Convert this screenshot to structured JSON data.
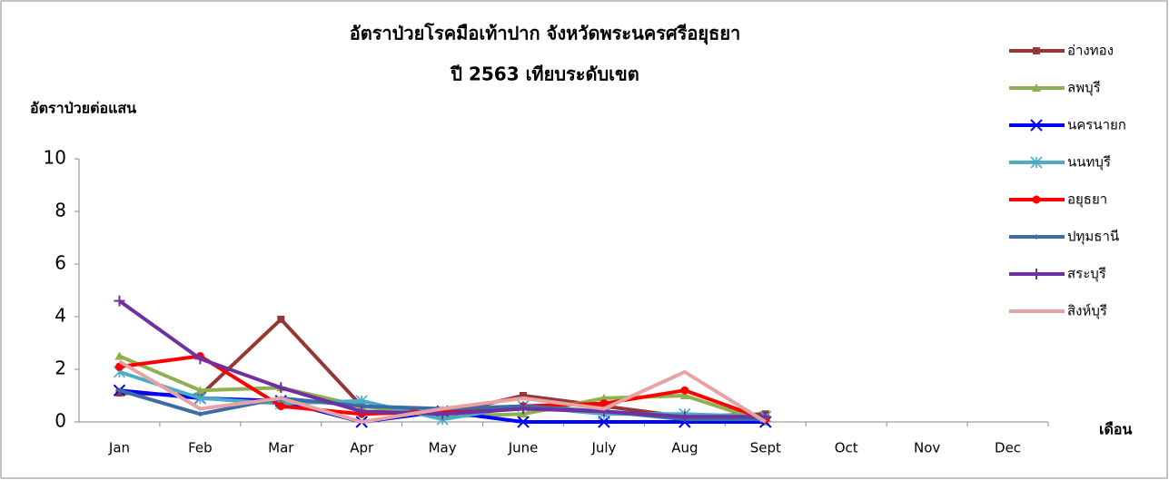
{
  "chart_data": {
    "type": "line",
    "title": "อัตราป่วยโรคมือเท้าปาก จังหวัดพระนครศรีอยุธยา",
    "subtitle": "ปี 2563 เทียบระดับเขต",
    "y_label": "อัตราป่วยต่อแสน",
    "x_label": "เดือน",
    "categories": [
      "Jan",
      "Feb",
      "Mar",
      "Apr",
      "May",
      "June",
      "July",
      "Aug",
      "Sept",
      "Oct",
      "Nov",
      "Dec"
    ],
    "ylim": [
      0,
      10
    ],
    "yticks": [
      0,
      2,
      4,
      6,
      8,
      10
    ],
    "grid": false,
    "legend": "right",
    "series": [
      {
        "name": "อ่างทอง",
        "color": "#953735",
        "marker": "square",
        "values": [
          1.1,
          1.0,
          3.9,
          0.6,
          0.3,
          1.0,
          0.6,
          0.2,
          0.3,
          null,
          null,
          null
        ]
      },
      {
        "name": "ลพบุรี",
        "color": "#8fb04f",
        "marker": "triangle",
        "values": [
          2.5,
          1.2,
          1.3,
          0.6,
          0.2,
          0.3,
          0.9,
          1.0,
          0.0,
          null,
          null,
          null
        ]
      },
      {
        "name": "นครนายก",
        "color": "#0000ff",
        "marker": "x",
        "values": [
          1.2,
          0.9,
          0.8,
          0.0,
          0.4,
          0.0,
          0.0,
          0.0,
          0.0,
          null,
          null,
          null
        ]
      },
      {
        "name": "นนทบุรี",
        "color": "#4bacc6",
        "marker": "asterisk",
        "values": [
          1.9,
          0.9,
          0.7,
          0.8,
          0.1,
          0.6,
          0.3,
          0.3,
          0.2,
          null,
          null,
          null
        ]
      },
      {
        "name": "อยุธยา",
        "color": "#ff0000",
        "marker": "circle",
        "values": [
          2.1,
          2.5,
          0.6,
          0.3,
          0.4,
          0.6,
          0.7,
          1.2,
          0.1,
          null,
          null,
          null
        ]
      },
      {
        "name": "ปทุมธานี",
        "color": "#3a6ca8",
        "marker": "diamond",
        "values": [
          1.2,
          0.3,
          0.9,
          0.6,
          0.5,
          0.6,
          0.4,
          0.1,
          0.1,
          null,
          null,
          null
        ]
      },
      {
        "name": "สระบุรี",
        "color": "#7030a0",
        "marker": "plus",
        "values": [
          4.6,
          2.4,
          1.3,
          0.4,
          0.3,
          0.5,
          0.4,
          0.2,
          0.2,
          null,
          null,
          null
        ]
      },
      {
        "name": "สิงห์บุรี",
        "color": "#e6a3a2",
        "marker": "none",
        "values": [
          2.3,
          0.5,
          0.9,
          0.0,
          0.5,
          0.9,
          0.5,
          1.9,
          0.0,
          null,
          null,
          null
        ]
      }
    ]
  }
}
